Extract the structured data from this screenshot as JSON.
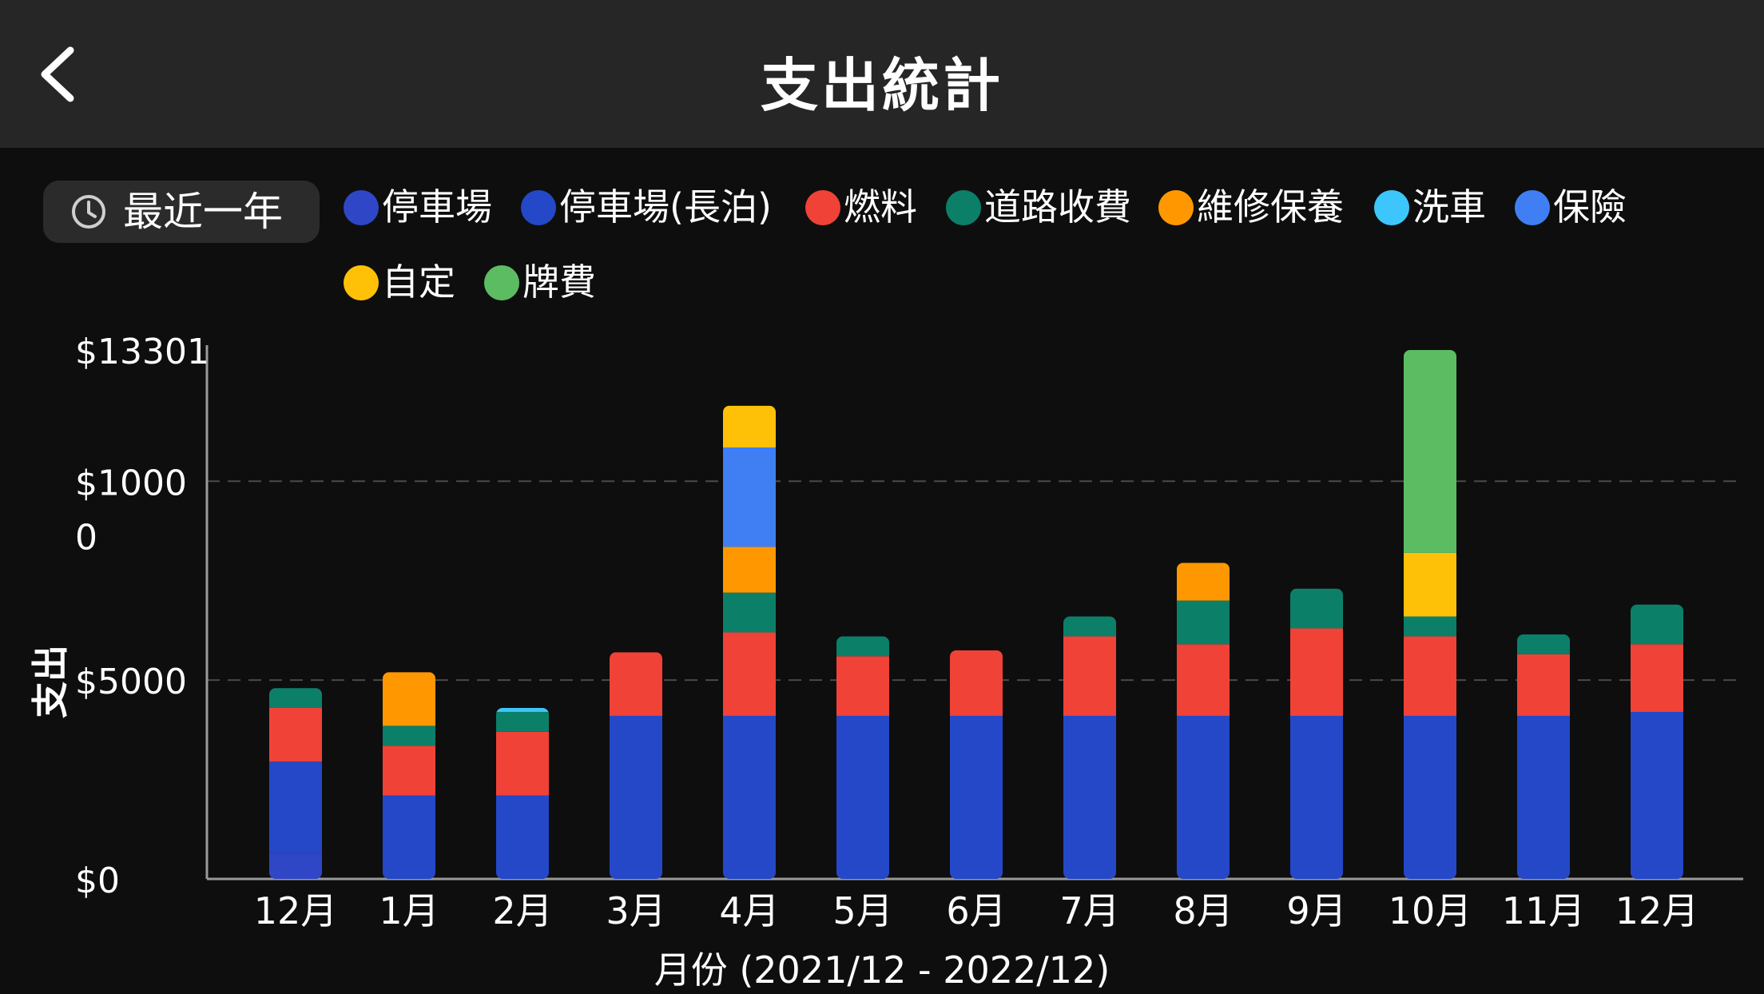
{
  "header": {
    "title": "支出統計"
  },
  "range_button": {
    "label": "最近一年"
  },
  "legend": [
    {
      "label": "停車場",
      "color": "#2f46c6"
    },
    {
      "label": "停車場(長泊)",
      "color": "#2448c8"
    },
    {
      "label": "燃料",
      "color": "#f04237"
    },
    {
      "label": "道路收費",
      "color": "#0c7f69"
    },
    {
      "label": "維修保養",
      "color": "#ff9800"
    },
    {
      "label": "洗車",
      "color": "#3cc6fb"
    },
    {
      "label": "保險",
      "color": "#3f7ff3"
    },
    {
      "label": "自定",
      "color": "#ffc107"
    },
    {
      "label": "牌費",
      "color": "#5cbc62"
    }
  ],
  "chart_data": {
    "type": "bar",
    "stacked": true,
    "xlabel": "月份 (2021/12 - 2022/12)",
    "ylabel": "支出",
    "ylim": [
      0,
      13301
    ],
    "ytick_labels": [
      {
        "value": 0,
        "label": "$0"
      },
      {
        "value": 5000,
        "label": "$5000"
      },
      {
        "value": 10000,
        "label": "$1000\n0"
      },
      {
        "value": 13301,
        "label": "$13301"
      }
    ],
    "grid": "dashed at $5000 and $10000",
    "categories": [
      "12月",
      "1月",
      "2月",
      "3月",
      "4月",
      "5月",
      "6月",
      "7月",
      "8月",
      "9月",
      "10月",
      "11月",
      "12月"
    ],
    "series": [
      {
        "name": "停車場",
        "color": "#2f46c6",
        "values": [
          650,
          0,
          0,
          0,
          0,
          0,
          0,
          0,
          0,
          0,
          0,
          0,
          0
        ]
      },
      {
        "name": "停車場(長泊)",
        "color": "#2448c8",
        "values": [
          2300,
          2100,
          2100,
          4100,
          4100,
          4100,
          4100,
          4100,
          4100,
          4100,
          4100,
          4100,
          4200
        ]
      },
      {
        "name": "燃料",
        "color": "#f04237",
        "values": [
          1350,
          1250,
          1600,
          1600,
          2100,
          1500,
          1650,
          2000,
          1800,
          2200,
          2000,
          1550,
          1700
        ]
      },
      {
        "name": "道路收費",
        "color": "#0c7f69",
        "values": [
          500,
          500,
          500,
          0,
          1000,
          500,
          0,
          500,
          1100,
          1000,
          500,
          500,
          1000
        ]
      },
      {
        "name": "維修保養",
        "color": "#ff9800",
        "values": [
          0,
          1350,
          0,
          0,
          1150,
          0,
          0,
          0,
          950,
          0,
          0,
          0,
          0
        ]
      },
      {
        "name": "洗車",
        "color": "#3cc6fb",
        "values": [
          0,
          0,
          100,
          0,
          0,
          0,
          0,
          0,
          0,
          0,
          0,
          0,
          0
        ]
      },
      {
        "name": "保險",
        "color": "#3f7ff3",
        "values": [
          0,
          0,
          0,
          0,
          2500,
          0,
          0,
          0,
          0,
          0,
          0,
          0,
          0
        ]
      },
      {
        "name": "自定",
        "color": "#ffc107",
        "values": [
          0,
          0,
          0,
          0,
          1050,
          0,
          0,
          0,
          0,
          0,
          1600,
          0,
          0
        ]
      },
      {
        "name": "牌費",
        "color": "#5cbc62",
        "values": [
          0,
          0,
          0,
          0,
          0,
          0,
          0,
          0,
          0,
          0,
          5100,
          0,
          0
        ]
      }
    ]
  }
}
